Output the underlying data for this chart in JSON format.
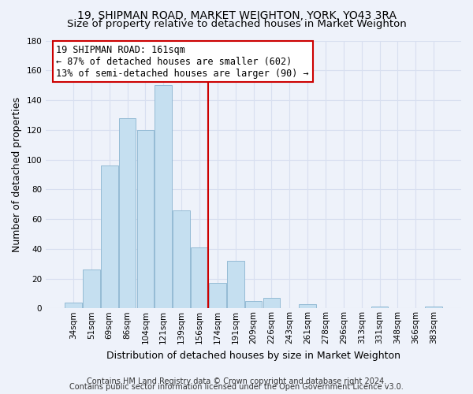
{
  "title": "19, SHIPMAN ROAD, MARKET WEIGHTON, YORK, YO43 3RA",
  "subtitle": "Size of property relative to detached houses in Market Weighton",
  "xlabel": "Distribution of detached houses by size in Market Weighton",
  "ylabel": "Number of detached properties",
  "bar_labels": [
    "34sqm",
    "51sqm",
    "69sqm",
    "86sqm",
    "104sqm",
    "121sqm",
    "139sqm",
    "156sqm",
    "174sqm",
    "191sqm",
    "209sqm",
    "226sqm",
    "243sqm",
    "261sqm",
    "278sqm",
    "296sqm",
    "313sqm",
    "331sqm",
    "348sqm",
    "366sqm",
    "383sqm"
  ],
  "bar_values": [
    4,
    26,
    96,
    128,
    120,
    150,
    66,
    41,
    17,
    32,
    5,
    7,
    0,
    3,
    0,
    0,
    0,
    1,
    0,
    0,
    1
  ],
  "bar_color": "#c5dff0",
  "bar_edge_color": "#8ab4d0",
  "reference_line_color": "#cc0000",
  "annotation_line1": "19 SHIPMAN ROAD: 161sqm",
  "annotation_line2": "← 87% of detached houses are smaller (602)",
  "annotation_line3": "13% of semi-detached houses are larger (90) →",
  "annotation_box_edge_color": "#cc0000",
  "annotation_box_fill": "#ffffff",
  "ylim": [
    0,
    180
  ],
  "yticks": [
    0,
    20,
    40,
    60,
    80,
    100,
    120,
    140,
    160,
    180
  ],
  "footer_line1": "Contains HM Land Registry data © Crown copyright and database right 2024.",
  "footer_line2": "Contains public sector information licensed under the Open Government Licence v3.0.",
  "bg_color": "#eef2fa",
  "grid_color": "#d8dff0",
  "title_fontsize": 10,
  "subtitle_fontsize": 9.5,
  "axis_label_fontsize": 9,
  "tick_fontsize": 7.5,
  "footer_fontsize": 7,
  "annotation_fontsize": 8.5
}
